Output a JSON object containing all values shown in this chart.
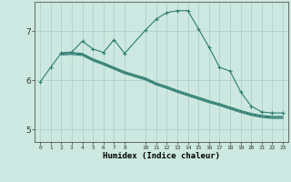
{
  "xlabel": "Humidex (Indice chaleur)",
  "bg_color": "#cce8e0",
  "line_color": "#2e7d70",
  "grid_color": "#aaccc4",
  "x_ticks": [
    0,
    1,
    2,
    3,
    4,
    5,
    6,
    7,
    8,
    10,
    11,
    12,
    13,
    14,
    15,
    16,
    17,
    18,
    19,
    20,
    21,
    22,
    23
  ],
  "ylim": [
    4.75,
    7.6
  ],
  "xlim": [
    -0.5,
    23.5
  ],
  "yticks": [
    5,
    6,
    7
  ],
  "s1_x": [
    0,
    1,
    2,
    3,
    4,
    5,
    6,
    7,
    8,
    10,
    11,
    12,
    13,
    14,
    15,
    16,
    17,
    18,
    19,
    20,
    21,
    22,
    23
  ],
  "s1_y": [
    5.97,
    6.27,
    6.56,
    6.58,
    6.8,
    6.64,
    6.57,
    6.83,
    6.55,
    7.03,
    7.25,
    7.38,
    7.42,
    7.42,
    7.05,
    6.68,
    6.27,
    6.19,
    5.77,
    5.48,
    5.36,
    5.34,
    5.34
  ],
  "s2_x": [
    2,
    3,
    4,
    5,
    6,
    7,
    8,
    10,
    11,
    12,
    13,
    14,
    15,
    16,
    17,
    18,
    19,
    20,
    21,
    22,
    23
  ],
  "s2_y": [
    6.56,
    6.57,
    6.55,
    6.44,
    6.36,
    6.27,
    6.18,
    6.05,
    5.95,
    5.88,
    5.8,
    5.73,
    5.66,
    5.59,
    5.53,
    5.46,
    5.39,
    5.33,
    5.29,
    5.27,
    5.27
  ],
  "s3_x": [
    2,
    3,
    4,
    5,
    6,
    7,
    8,
    10,
    11,
    12,
    13,
    14,
    15,
    16,
    17,
    18,
    19,
    20,
    21,
    22,
    23
  ],
  "s3_y": [
    6.54,
    6.55,
    6.53,
    6.42,
    6.34,
    6.25,
    6.16,
    6.03,
    5.93,
    5.86,
    5.78,
    5.71,
    5.64,
    5.57,
    5.51,
    5.44,
    5.37,
    5.31,
    5.27,
    5.25,
    5.25
  ],
  "s4_x": [
    2,
    3,
    4,
    5,
    6,
    7,
    8,
    10,
    11,
    12,
    13,
    14,
    15,
    16,
    17,
    18,
    19,
    20,
    21,
    22,
    23
  ],
  "s4_y": [
    6.52,
    6.53,
    6.51,
    6.4,
    6.32,
    6.23,
    6.14,
    6.01,
    5.91,
    5.84,
    5.76,
    5.69,
    5.62,
    5.55,
    5.49,
    5.42,
    5.35,
    5.29,
    5.25,
    5.23,
    5.23
  ]
}
